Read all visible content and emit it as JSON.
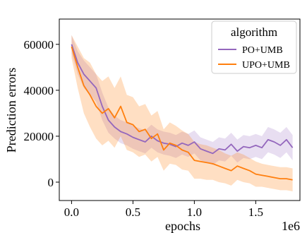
{
  "chart_data": {
    "type": "line",
    "title": "",
    "xlabel": "epochs",
    "ylabel": "Prediction errors",
    "x_offset_label": "1e6",
    "xlim": [
      -0.1,
      1.86
    ],
    "ylim": [
      -8000,
      71000
    ],
    "x_ticks": [
      0.0,
      0.5,
      1.0,
      1.5
    ],
    "x_tick_labels": [
      "0.0",
      "0.5",
      "1.0",
      "1.5"
    ],
    "y_ticks": [
      0,
      20000,
      40000,
      60000
    ],
    "y_tick_labels": [
      "0",
      "20000",
      "40000",
      "60000"
    ],
    "grid": false,
    "legend": {
      "title": "algorithm",
      "placement": "top-right",
      "entries": [
        "PO+UMB",
        "UPO+UMB"
      ]
    },
    "x": [
      0.0,
      0.05,
      0.1,
      0.15,
      0.2,
      0.25,
      0.3,
      0.35,
      0.4,
      0.45,
      0.5,
      0.55,
      0.6,
      0.65,
      0.7,
      0.75,
      0.8,
      0.85,
      0.9,
      0.95,
      1.0,
      1.05,
      1.1,
      1.15,
      1.2,
      1.25,
      1.3,
      1.35,
      1.4,
      1.45,
      1.5,
      1.55,
      1.6,
      1.65,
      1.7,
      1.75,
      1.8
    ],
    "series": [
      {
        "name": "PO+UMB",
        "color": "#9467bd",
        "values": [
          60000,
          52000,
          47000,
          44000,
          41000,
          33000,
          27000,
          24000,
          22000,
          21000,
          19500,
          18500,
          17500,
          20000,
          18000,
          17000,
          16500,
          15500,
          17000,
          16000,
          17500,
          14500,
          13500,
          12500,
          14500,
          14000,
          16500,
          13500,
          15500,
          15000,
          16000,
          15000,
          18500,
          17500,
          16000,
          18500,
          15000
        ],
        "band_half_width": [
          4000,
          5000,
          6000,
          6000,
          6000,
          6000,
          5500,
          5000,
          5000,
          5000,
          5000,
          5000,
          5000,
          5000,
          5000,
          5000,
          5000,
          5000,
          5000,
          5000,
          5000,
          5000,
          5000,
          5000,
          5000,
          5000,
          5000,
          5000,
          5000,
          5000,
          5000,
          5000,
          5500,
          5500,
          5500,
          5500,
          5500
        ]
      },
      {
        "name": "UPO+UMB",
        "color": "#ff7f0e",
        "values": [
          59000,
          50000,
          42000,
          38000,
          33000,
          30000,
          32000,
          28000,
          33000,
          26000,
          25000,
          22000,
          23000,
          19000,
          21000,
          14000,
          17000,
          16000,
          14000,
          13000,
          9500,
          9000,
          8500,
          8000,
          7000,
          6000,
          5000,
          7000,
          6000,
          5000,
          3500,
          3000,
          2500,
          2000,
          1500,
          1500,
          1000
        ],
        "band_half_width": [
          5000,
          9000,
          12000,
          14000,
          14000,
          14000,
          14000,
          13000,
          13000,
          12000,
          12000,
          11000,
          11000,
          10000,
          10000,
          9000,
          9000,
          8500,
          8500,
          8000,
          8000,
          7500,
          7500,
          7000,
          7000,
          6500,
          6500,
          6000,
          6000,
          5500,
          5500,
          5000,
          5000,
          5000,
          5000,
          5000,
          5000
        ]
      }
    ]
  }
}
